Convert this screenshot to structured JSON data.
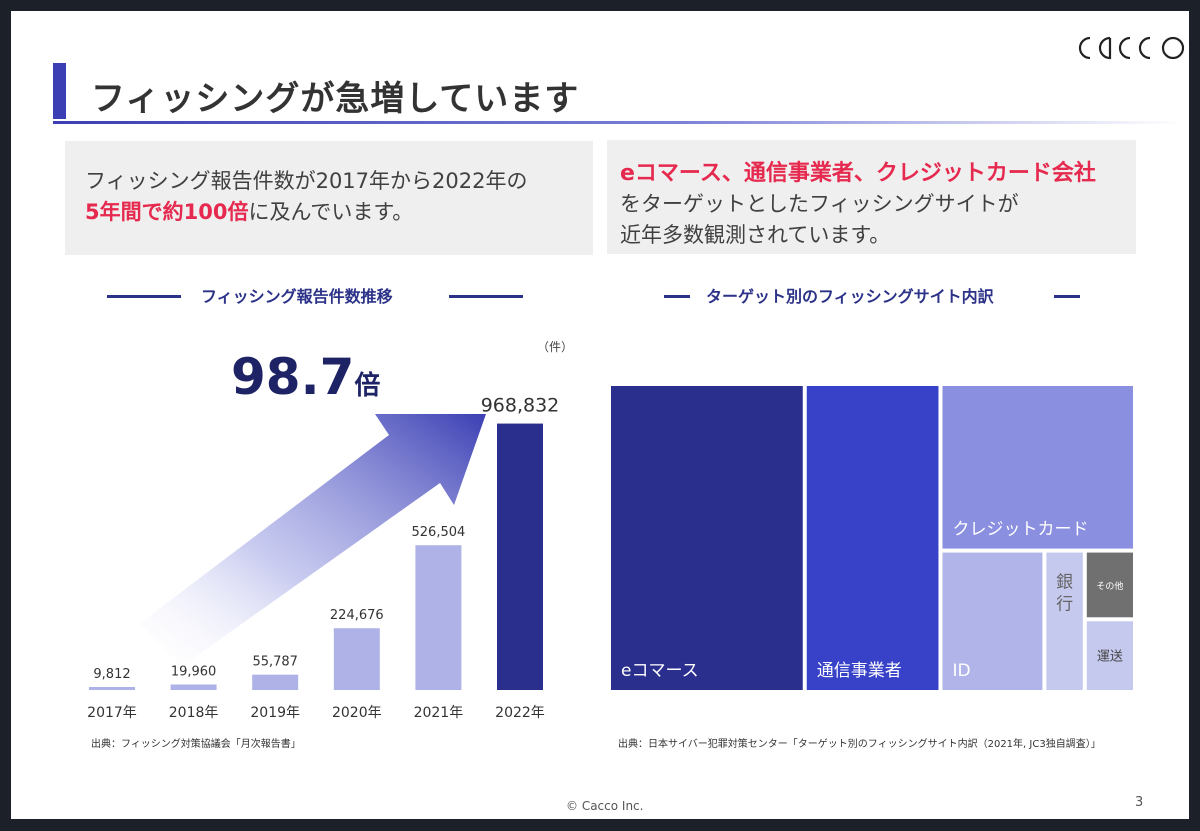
{
  "logo_text": "cacco",
  "slide_title": "フィッシングが急増しています",
  "box_left": {
    "line1": "フィッシング報告件数が2017年から2022年の",
    "line2_highlight": "5年間で約100倍",
    "line2_rest": "に及んでいます。"
  },
  "box_right": {
    "line1_highlight": "eコマース、通信事業者、クレジットカード会社",
    "line2": "をターゲットとしたフィッシングサイトが",
    "line3": "近年多数観測されています。"
  },
  "left_section_title": "フィッシング報告件数推移",
  "right_section_title": "ターゲット別のフィッシングサイト内訳",
  "multiplier": {
    "value": "98.7",
    "unit": "倍"
  },
  "colors": {
    "accent": "#3b3fb3",
    "dark_navy": "#2b3288",
    "highlight_red": "#e6294e",
    "bar_light": "#aeb2e6",
    "bar_dark": "#2a2f8e"
  },
  "chart_data": [
    {
      "type": "bar",
      "title": "フィッシング報告件数推移",
      "unit_label": "（件）",
      "categories": [
        "2017年",
        "2018年",
        "2019年",
        "2020年",
        "2021年",
        "2022年"
      ],
      "values": [
        9812,
        19960,
        55787,
        224676,
        526504,
        968832
      ],
      "value_labels": [
        "9,812",
        "19,960",
        "55,787",
        "224,676",
        "526,504",
        "968,832"
      ],
      "ylim": [
        0,
        1000000
      ],
      "grid": false
    },
    {
      "type": "treemap",
      "title": "ターゲット別のフィッシングサイト内訳",
      "categories": [
        "eコマース",
        "通信事業者",
        "クレジットカード",
        "ID",
        "銀行",
        "その他",
        "運送"
      ],
      "values": [
        37.5,
        26,
        20,
        9,
        3.5,
        2,
        2
      ],
      "colors": [
        "#2a2f8e",
        "#3742c9",
        "#8a8fe0",
        "#b0b4e8",
        "#c6c9ee",
        "#707070",
        "#c6c9ee"
      ],
      "grid": false
    }
  ],
  "source_left": "出典：フィッシング対策協議会「月次報告書」",
  "source_right": "出典：日本サイバー犯罪対策センター「ターゲット別のフィッシングサイト内訳（2021年, JC3独自調査）」",
  "footer": "© Cacco Inc.",
  "page_number": "3"
}
